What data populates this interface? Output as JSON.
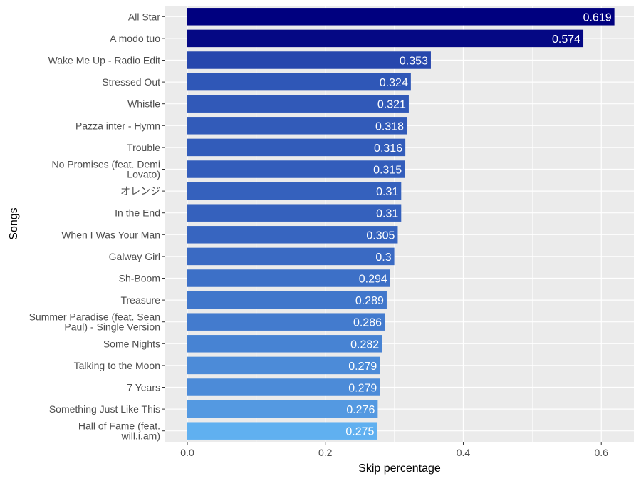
{
  "chart_data": {
    "type": "bar",
    "orientation": "horizontal",
    "xlabel": "Skip percentage",
    "ylabel": "Songs",
    "xlim": [
      -0.033,
      0.645
    ],
    "x_ticks": [
      {
        "value": 0.0,
        "label": "0.0"
      },
      {
        "value": 0.2,
        "label": "0.2"
      },
      {
        "value": 0.4,
        "label": "0.4"
      },
      {
        "value": 0.6,
        "label": "0.6"
      }
    ],
    "grid": true,
    "legend": "none",
    "color_low": "#60b0f0",
    "color_high": "#00007f",
    "categories": [
      [
        "All Star"
      ],
      [
        "A modo tuo"
      ],
      [
        "Wake Me Up - Radio Edit"
      ],
      [
        "Stressed Out"
      ],
      [
        "Whistle"
      ],
      [
        "Pazza inter - Hymn"
      ],
      [
        "Trouble"
      ],
      [
        "No Promises (feat. Demi",
        "Lovato)"
      ],
      [
        "オレンジ"
      ],
      [
        "In the End"
      ],
      [
        "When I Was Your Man"
      ],
      [
        "Galway Girl"
      ],
      [
        "Sh-Boom"
      ],
      [
        "Treasure"
      ],
      [
        "Summer Paradise (feat. Sean",
        "Paul) - Single Version"
      ],
      [
        "Some Nights"
      ],
      [
        "Talking to the Moon"
      ],
      [
        "7 Years"
      ],
      [
        "Something Just Like This"
      ],
      [
        "Hall of Fame (feat.",
        "will.i.am)"
      ]
    ],
    "values": [
      0.619,
      0.574,
      0.353,
      0.324,
      0.321,
      0.318,
      0.316,
      0.315,
      0.31,
      0.31,
      0.305,
      0.3,
      0.294,
      0.289,
      0.286,
      0.282,
      0.279,
      0.279,
      0.276,
      0.275
    ],
    "value_labels": [
      "0.619",
      "0.574",
      "0.353",
      "0.324",
      "0.321",
      "0.318",
      "0.316",
      "0.315",
      "0.31",
      "0.31",
      "0.305",
      "0.3",
      "0.294",
      "0.289",
      "0.286",
      "0.282",
      "0.279",
      "0.279",
      "0.276",
      "0.275"
    ]
  }
}
